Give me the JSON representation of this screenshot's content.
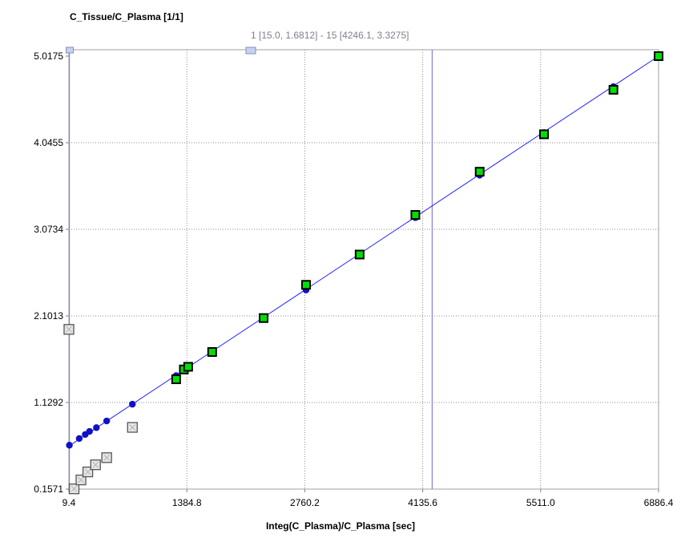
{
  "chart_data": {
    "type": "scatter",
    "title": "C_Tissue/C_Plasma [1/1]",
    "xlabel": "Integ(C_Plasma)/C_Plasma [sec]",
    "ylabel": "",
    "range_info": "1 [15.0, 1.6812] - 15 [4246.1, 3.3275]",
    "xlim": [
      9.4,
      6886.4
    ],
    "ylim": [
      0.1571,
      5.0175
    ],
    "x_ticks": [
      "9.4",
      "1384.8",
      "2760.2",
      "4135.6",
      "5511.0",
      "6886.4"
    ],
    "y_ticks": [
      "0.1571",
      "1.1292",
      "2.1013",
      "3.0734",
      "4.0455",
      "5.0175"
    ],
    "grid": true,
    "colors": {
      "fit_line": "#2020ff",
      "model_points": "#1010c8",
      "included_points": "#00e000",
      "excluded_points": "#e6e6e6",
      "range_marker": "#8080e0"
    },
    "range_markers_x": [
      15.0,
      4246.1
    ],
    "fit_line": {
      "x": [
        9.4,
        6886.4
      ],
      "y": [
        0.64,
        5.0175
      ]
    },
    "series": [
      {
        "values_x": [
          15,
          130,
          200,
          250,
          330,
          450,
          750,
          1260,
          1350,
          1400,
          1680,
          2280,
          2775,
          3400,
          4050,
          4800,
          5550,
          6360,
          6886.4
        ],
        "values_y": [
          0.65,
          0.725,
          0.77,
          0.805,
          0.847,
          0.922,
          1.11,
          1.431,
          1.488,
          1.519,
          1.696,
          2.077,
          2.392,
          2.79,
          3.204,
          3.681,
          4.159,
          4.675,
          5.01
        ]
      },
      {
        "values_x": [
          1260,
          1350,
          1400,
          1680,
          2280,
          2775,
          3400,
          4050,
          4800,
          5550,
          6360,
          6886.4
        ],
        "values_y": [
          1.39,
          1.5,
          1.53,
          1.696,
          2.077,
          2.45,
          2.79,
          3.235,
          3.72,
          4.14,
          4.64,
          5.0175
        ]
      },
      {
        "values_x": [
          9.4,
          70,
          150,
          230,
          320,
          450,
          750
        ],
        "values_y": [
          1.95,
          0.16,
          0.26,
          0.35,
          0.43,
          0.51,
          0.85
        ]
      }
    ]
  }
}
